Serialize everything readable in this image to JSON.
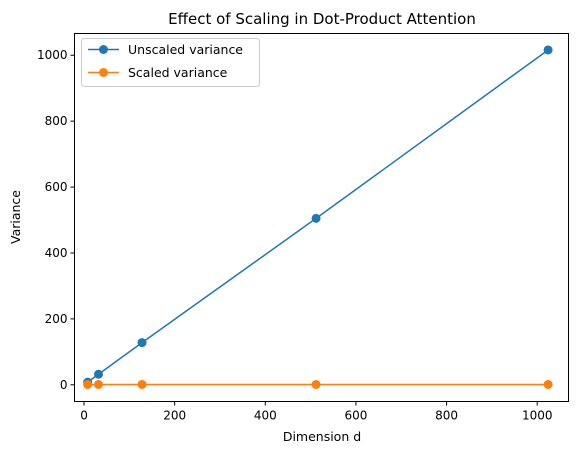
{
  "chart_data": {
    "type": "line",
    "title": "Effect of Scaling in Dot-Product Attention",
    "xlabel": "Dimension d",
    "ylabel": "Variance",
    "xlim": [
      -21,
      1069
    ],
    "ylim": [
      -50.7,
      1066
    ],
    "xticks": [
      0,
      200,
      400,
      600,
      800,
      1000
    ],
    "yticks": [
      0,
      200,
      400,
      600,
      800,
      1000
    ],
    "grid": false,
    "legend": "top-left",
    "x": [
      8,
      32,
      128,
      512,
      1024
    ],
    "series": [
      {
        "name": "Unscaled variance",
        "color": "#1f77b4",
        "marker": "circle",
        "values": [
          8,
          32,
          128,
          505,
          1016
        ]
      },
      {
        "name": "Scaled variance",
        "color": "#ff7f0e",
        "marker": "circle",
        "values": [
          1,
          1,
          1,
          1,
          1
        ]
      }
    ]
  }
}
